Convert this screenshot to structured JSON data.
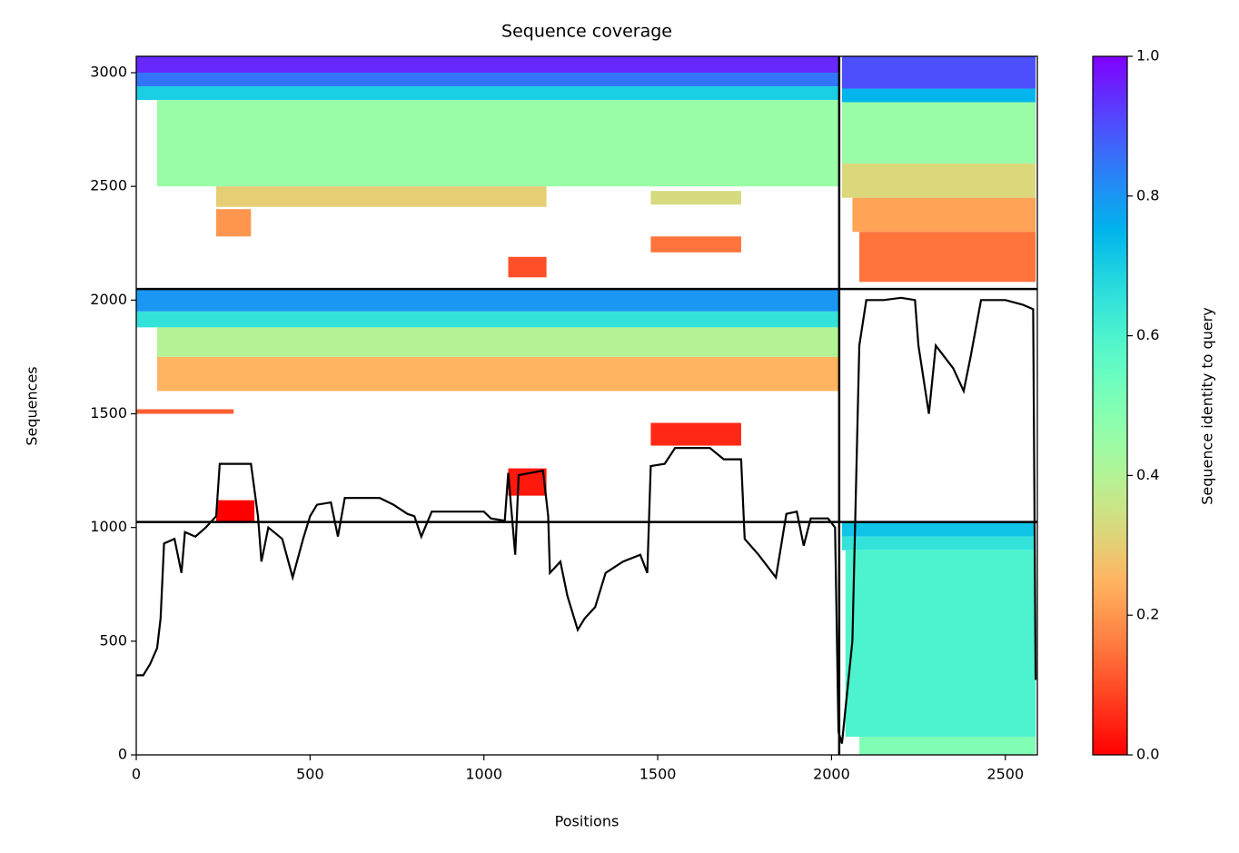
{
  "chart_data": {
    "type": "coverage",
    "title": "Sequence coverage",
    "xlabel": "Positions",
    "ylabel": "Sequences",
    "colorbar_label": "Sequence identity to query",
    "colormap": "rainbow_r",
    "clim": [
      0,
      1
    ],
    "cticks": [
      {
        "value": 0,
        "label": "0.0"
      },
      0.2,
      0.4,
      0.6,
      0.8,
      {
        "value": 1,
        "label": "1.0"
      }
    ],
    "xlim": [
      0,
      2592
    ],
    "ylim": [
      0,
      3072
    ],
    "xticks": [
      0,
      500,
      1000,
      1500,
      2000,
      2500
    ],
    "yticks": [
      0,
      500,
      1000,
      1500,
      2000,
      2500,
      3000
    ],
    "dividers": {
      "x": [
        2022
      ],
      "y": [
        1024,
        2049
      ],
      "color": "#000000"
    },
    "blocks": [
      {
        "x": [
          0,
          2022
        ],
        "y": [
          3000,
          3072
        ],
        "identity": 0.95
      },
      {
        "x": [
          0,
          2022
        ],
        "y": [
          2940,
          3000
        ],
        "identity": 0.85
      },
      {
        "x": [
          0,
          2022
        ],
        "y": [
          2880,
          2940
        ],
        "identity": 0.7
      },
      {
        "x": [
          60,
          2022
        ],
        "y": [
          2500,
          2880
        ],
        "identity": 0.45
      },
      {
        "x": [
          230,
          1180
        ],
        "y": [
          2410,
          2500
        ],
        "identity": 0.3
      },
      {
        "x": [
          230,
          330
        ],
        "y": [
          2280,
          2400
        ],
        "identity": 0.2
      },
      {
        "x": [
          1480,
          1740
        ],
        "y": [
          2420,
          2480
        ],
        "identity": 0.33
      },
      {
        "x": [
          1480,
          1740
        ],
        "y": [
          2210,
          2280
        ],
        "identity": 0.15
      },
      {
        "x": [
          1070,
          1180
        ],
        "y": [
          2100,
          2190
        ],
        "identity": 0.1
      },
      {
        "x": [
          2030,
          2587
        ],
        "y": [
          2930,
          3072
        ],
        "identity": 0.9
      },
      {
        "x": [
          2030,
          2587
        ],
        "y": [
          2870,
          2930
        ],
        "identity": 0.75
      },
      {
        "x": [
          2030,
          2587
        ],
        "y": [
          2600,
          2870
        ],
        "identity": 0.45
      },
      {
        "x": [
          2030,
          2587
        ],
        "y": [
          2450,
          2600
        ],
        "identity": 0.32
      },
      {
        "x": [
          2060,
          2587
        ],
        "y": [
          2300,
          2450
        ],
        "identity": 0.22
      },
      {
        "x": [
          2080,
          2587
        ],
        "y": [
          2080,
          2300
        ],
        "identity": 0.15
      },
      {
        "x": [
          0,
          2022
        ],
        "y": [
          1950,
          2049
        ],
        "identity": 0.8
      },
      {
        "x": [
          0,
          2022
        ],
        "y": [
          1880,
          1950
        ],
        "identity": 0.65
      },
      {
        "x": [
          60,
          2022
        ],
        "y": [
          1750,
          1880
        ],
        "identity": 0.4
      },
      {
        "x": [
          60,
          2022
        ],
        "y": [
          1600,
          1750
        ],
        "identity": 0.25
      },
      {
        "x": [
          0,
          280
        ],
        "y": [
          1500,
          1520
        ],
        "identity": 0.12
      },
      {
        "x": [
          1480,
          1740
        ],
        "y": [
          1360,
          1460
        ],
        "identity": 0.05
      },
      {
        "x": [
          1070,
          1180
        ],
        "y": [
          1140,
          1260
        ],
        "identity": 0.03
      },
      {
        "x": [
          230,
          340
        ],
        "y": [
          1024,
          1120
        ],
        "identity": 0.0
      },
      {
        "x": [
          2030,
          2587
        ],
        "y": [
          960,
          1024
        ],
        "identity": 0.72
      },
      {
        "x": [
          2030,
          2587
        ],
        "y": [
          900,
          960
        ],
        "identity": 0.65
      },
      {
        "x": [
          2040,
          2587
        ],
        "y": [
          80,
          900
        ],
        "identity": 0.6
      },
      {
        "x": [
          2080,
          2587
        ],
        "y": [
          0,
          80
        ],
        "identity": 0.5
      }
    ],
    "coverage": {
      "color": "#000000",
      "x": [
        0,
        20,
        40,
        60,
        70,
        80,
        110,
        130,
        140,
        170,
        200,
        230,
        240,
        330,
        350,
        360,
        380,
        420,
        450,
        480,
        500,
        520,
        560,
        580,
        600,
        700,
        740,
        780,
        800,
        820,
        850,
        1000,
        1020,
        1060,
        1070,
        1090,
        1100,
        1170,
        1185,
        1190,
        1220,
        1240,
        1270,
        1290,
        1320,
        1350,
        1400,
        1450,
        1470,
        1480,
        1520,
        1550,
        1650,
        1690,
        1740,
        1750,
        1790,
        1840,
        1870,
        1900,
        1920,
        1940,
        1990,
        2010,
        2020,
        2030,
        2040,
        2060,
        2080,
        2100,
        2150,
        2200,
        2240,
        2250,
        2280,
        2300,
        2350,
        2380,
        2400,
        2430,
        2500,
        2550,
        2580,
        2587
      ],
      "y": [
        350,
        350,
        400,
        470,
        600,
        930,
        950,
        800,
        980,
        960,
        1000,
        1050,
        1280,
        1280,
        1050,
        850,
        1000,
        950,
        780,
        950,
        1050,
        1100,
        1110,
        960,
        1130,
        1130,
        1100,
        1060,
        1050,
        960,
        1070,
        1070,
        1040,
        1030,
        1240,
        880,
        1230,
        1250,
        1050,
        800,
        850,
        700,
        550,
        600,
        650,
        800,
        850,
        880,
        800,
        1270,
        1280,
        1350,
        1350,
        1300,
        1300,
        950,
        880,
        780,
        1060,
        1070,
        920,
        1040,
        1040,
        1000,
        100,
        50,
        200,
        500,
        1800,
        2000,
        2000,
        2010,
        2000,
        1800,
        1500,
        1800,
        1700,
        1600,
        1750,
        2000,
        2000,
        1980,
        1960,
        330
      ]
    }
  }
}
